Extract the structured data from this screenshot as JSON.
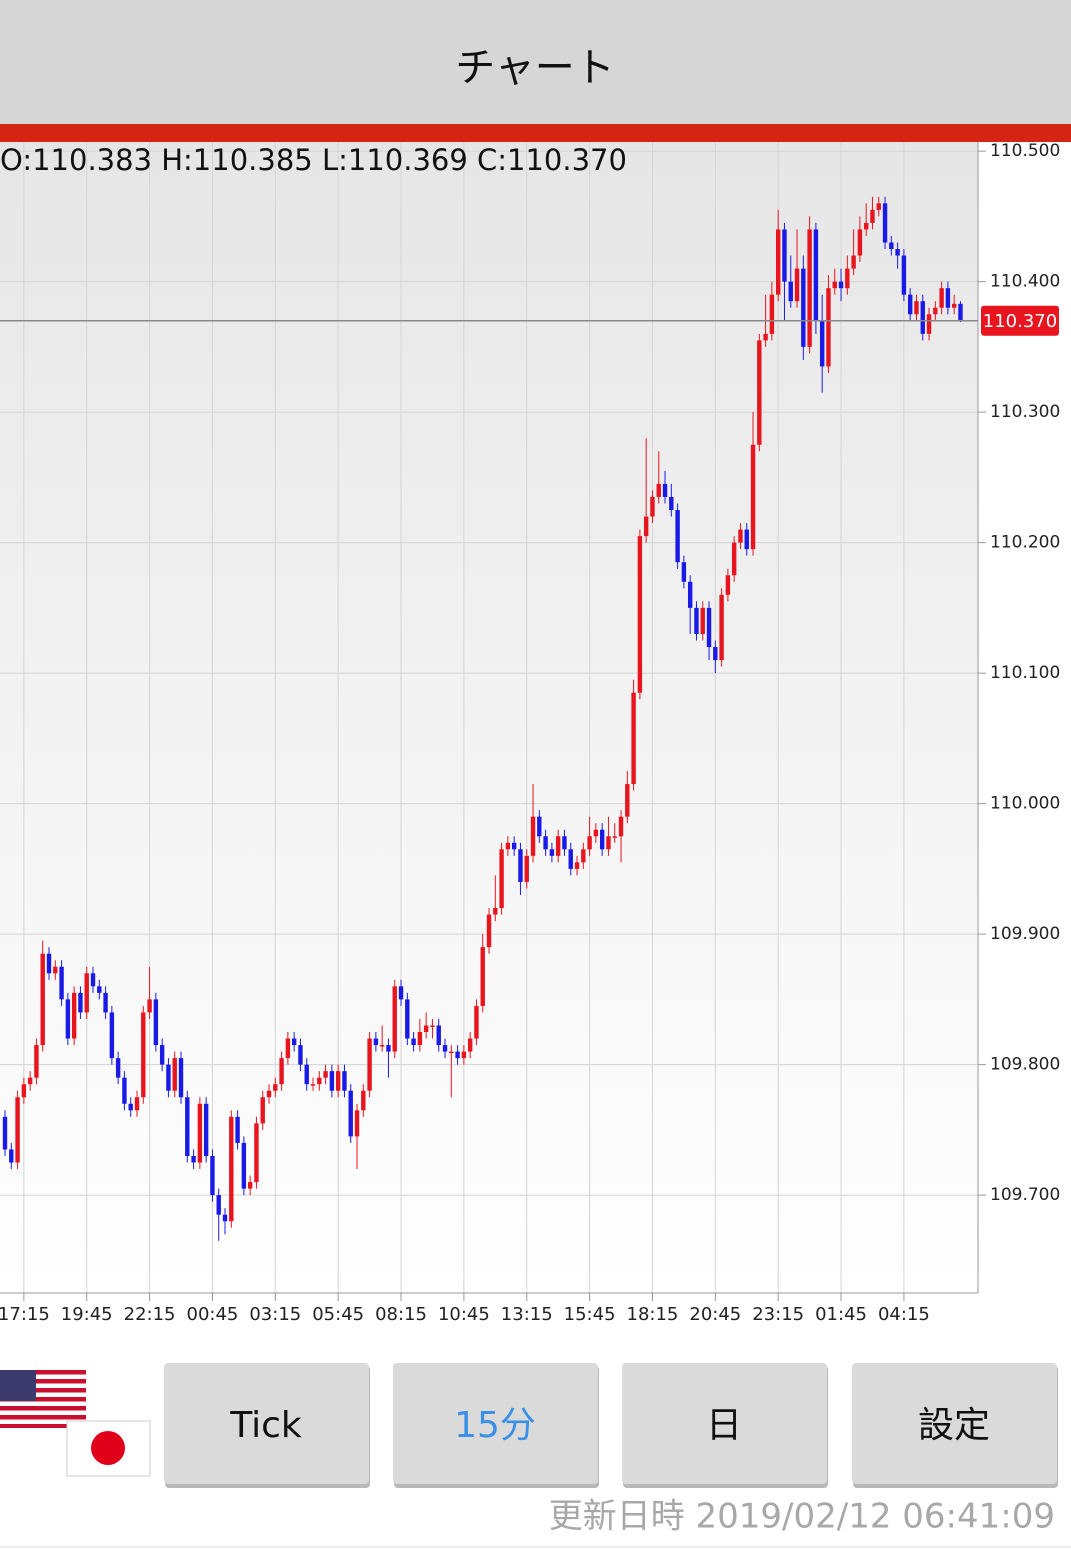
{
  "header": {
    "title": "チャート"
  },
  "chart_data": {
    "type": "candlestick",
    "ohlc_label": "O:110.383 H:110.385 L:110.369 C:110.370",
    "categories": [
      null,
      null,
      null,
      "17:15",
      null,
      null,
      null,
      null,
      null,
      null,
      null,
      null,
      null,
      "19:45",
      null,
      null,
      null,
      null,
      null,
      null,
      null,
      null,
      null,
      "22:15",
      null,
      null,
      null,
      null,
      null,
      null,
      null,
      null,
      null,
      "00:45",
      null,
      null,
      null,
      null,
      null,
      null,
      null,
      null,
      null,
      "03:15",
      null,
      null,
      null,
      null,
      null,
      null,
      null,
      null,
      null,
      "05:45",
      null,
      null,
      null,
      null,
      null,
      null,
      null,
      null,
      null,
      "08:15",
      null,
      null,
      null,
      null,
      null,
      null,
      null,
      null,
      null,
      "10:45",
      null,
      null,
      null,
      null,
      null,
      null,
      null,
      null,
      null,
      "13:15",
      null,
      null,
      null,
      null,
      null,
      null,
      null,
      null,
      null,
      "15:45",
      null,
      null,
      null,
      null,
      null,
      null,
      null,
      null,
      null,
      "18:15",
      null,
      null,
      null,
      null,
      null,
      null,
      null,
      null,
      null,
      "20:45",
      null,
      null,
      null,
      null,
      null,
      null,
      null,
      null,
      null,
      "23:15",
      null,
      null,
      null,
      null,
      null,
      null,
      null,
      null,
      null,
      "01:45",
      null,
      null,
      null,
      null,
      null,
      null,
      null,
      null,
      null,
      "04:15",
      null,
      null,
      null,
      null,
      null,
      null,
      null,
      null,
      null
    ],
    "open": [
      109.76,
      109.735,
      109.725,
      109.775,
      109.785,
      109.79,
      109.815,
      109.885,
      109.87,
      109.875,
      109.85,
      109.82,
      109.855,
      109.84,
      109.87,
      109.86,
      109.855,
      109.84,
      109.805,
      109.79,
      109.77,
      109.765,
      109.775,
      109.84,
      109.85,
      109.815,
      109.8,
      109.78,
      109.805,
      109.775,
      109.73,
      109.725,
      109.77,
      109.73,
      109.7,
      109.685,
      109.68,
      109.76,
      109.74,
      109.705,
      109.71,
      109.755,
      109.775,
      109.78,
      109.785,
      109.805,
      109.82,
      109.815,
      109.8,
      109.785,
      109.785,
      109.79,
      109.795,
      109.78,
      109.795,
      109.78,
      109.745,
      109.765,
      109.78,
      109.82,
      109.815,
      109.815,
      109.81,
      109.86,
      109.85,
      109.82,
      109.815,
      109.825,
      109.83,
      109.83,
      109.815,
      109.81,
      109.81,
      109.805,
      109.81,
      109.82,
      109.845,
      109.89,
      109.915,
      109.92,
      109.965,
      109.97,
      109.965,
      109.94,
      109.96,
      109.99,
      109.975,
      109.965,
      109.96,
      109.975,
      109.965,
      109.95,
      109.955,
      109.965,
      109.975,
      109.98,
      109.965,
      109.975,
      109.975,
      109.99,
      110.015,
      110.085,
      110.205,
      110.22,
      110.235,
      110.245,
      110.235,
      110.225,
      110.185,
      110.17,
      110.15,
      110.13,
      110.15,
      110.12,
      110.11,
      110.16,
      110.175,
      110.2,
      110.21,
      110.195,
      110.275,
      110.355,
      110.36,
      110.39,
      110.44,
      110.4,
      110.385,
      110.41,
      110.35,
      110.44,
      110.37,
      110.335,
      110.395,
      110.4,
      110.395,
      110.41,
      110.42,
      110.44,
      110.445,
      110.455,
      110.46,
      110.43,
      110.425,
      110.42,
      110.39,
      110.375,
      110.385,
      110.36,
      110.375,
      110.38,
      110.395,
      110.38,
      110.383
    ],
    "high": [
      109.765,
      109.74,
      109.78,
      109.79,
      109.795,
      109.82,
      109.895,
      109.89,
      109.88,
      109.88,
      109.855,
      109.86,
      109.86,
      109.875,
      109.875,
      109.865,
      109.86,
      109.845,
      109.81,
      109.795,
      109.775,
      109.78,
      109.845,
      109.875,
      109.855,
      109.82,
      109.805,
      109.81,
      109.81,
      109.78,
      109.735,
      109.775,
      109.775,
      109.735,
      109.705,
      109.69,
      109.765,
      109.765,
      109.745,
      109.715,
      109.76,
      109.78,
      109.785,
      109.79,
      109.81,
      109.825,
      109.825,
      109.82,
      109.805,
      109.79,
      109.795,
      109.8,
      109.8,
      109.8,
      109.8,
      109.785,
      109.77,
      109.785,
      109.825,
      109.825,
      109.83,
      109.82,
      109.865,
      109.865,
      109.855,
      109.825,
      109.835,
      109.84,
      109.835,
      109.835,
      109.82,
      109.815,
      109.815,
      109.815,
      109.825,
      109.85,
      109.9,
      109.92,
      109.945,
      109.97,
      109.975,
      109.975,
      109.97,
      109.965,
      110.015,
      109.995,
      109.98,
      109.97,
      109.98,
      109.98,
      109.97,
      109.96,
      109.97,
      109.99,
      109.985,
      109.985,
      109.99,
      109.985,
      109.995,
      110.025,
      110.095,
      110.21,
      110.28,
      110.24,
      110.27,
      110.255,
      110.245,
      110.23,
      110.19,
      110.175,
      110.155,
      110.155,
      110.155,
      110.125,
      110.165,
      110.18,
      110.205,
      110.215,
      110.215,
      110.3,
      110.36,
      110.39,
      110.4,
      110.455,
      110.445,
      110.42,
      110.44,
      110.42,
      110.45,
      110.445,
      110.39,
      110.405,
      110.41,
      110.41,
      110.42,
      110.44,
      110.45,
      110.46,
      110.465,
      110.465,
      110.465,
      110.435,
      110.43,
      110.425,
      110.395,
      110.39,
      110.39,
      110.38,
      110.385,
      110.4,
      110.4,
      110.39,
      110.385
    ],
    "low": [
      109.73,
      109.72,
      109.72,
      109.77,
      109.78,
      109.785,
      109.81,
      109.865,
      109.865,
      109.845,
      109.815,
      109.815,
      109.835,
      109.835,
      109.855,
      109.85,
      109.835,
      109.8,
      109.785,
      109.765,
      109.76,
      109.76,
      109.77,
      109.835,
      109.81,
      109.795,
      109.775,
      109.775,
      109.77,
      109.725,
      109.72,
      109.72,
      109.725,
      109.695,
      109.665,
      109.67,
      109.675,
      109.735,
      109.7,
      109.7,
      109.705,
      109.75,
      109.77,
      109.775,
      109.78,
      109.8,
      109.81,
      109.795,
      109.78,
      109.78,
      109.78,
      109.785,
      109.775,
      109.775,
      109.775,
      109.74,
      109.72,
      109.76,
      109.775,
      109.81,
      109.81,
      109.79,
      109.805,
      109.845,
      109.815,
      109.81,
      109.81,
      109.82,
      109.82,
      109.81,
      109.805,
      109.775,
      109.8,
      109.8,
      109.805,
      109.815,
      109.84,
      109.885,
      109.91,
      109.915,
      109.96,
      109.96,
      109.93,
      109.935,
      109.955,
      109.97,
      109.96,
      109.955,
      109.955,
      109.96,
      109.945,
      109.945,
      109.95,
      109.96,
      109.97,
      109.96,
      109.96,
      109.97,
      109.955,
      109.985,
      110.01,
      110.08,
      110.2,
      110.215,
      110.23,
      110.23,
      110.22,
      110.18,
      110.165,
      110.13,
      110.125,
      110.125,
      110.11,
      110.1,
      110.105,
      110.155,
      110.17,
      110.195,
      110.19,
      110.19,
      110.27,
      110.35,
      110.355,
      110.385,
      110.37,
      110.38,
      110.38,
      110.34,
      110.345,
      110.36,
      110.315,
      110.33,
      110.39,
      110.385,
      110.39,
      110.405,
      110.415,
      110.435,
      110.44,
      110.45,
      110.425,
      110.42,
      110.41,
      110.385,
      110.37,
      110.37,
      110.355,
      110.355,
      110.37,
      110.375,
      110.375,
      110.375,
      110.369
    ],
    "close": [
      109.735,
      109.725,
      109.775,
      109.785,
      109.79,
      109.815,
      109.885,
      109.87,
      109.875,
      109.85,
      109.82,
      109.855,
      109.84,
      109.87,
      109.86,
      109.855,
      109.84,
      109.805,
      109.79,
      109.77,
      109.765,
      109.775,
      109.84,
      109.85,
      109.815,
      109.8,
      109.78,
      109.805,
      109.775,
      109.73,
      109.725,
      109.77,
      109.73,
      109.7,
      109.685,
      109.68,
      109.76,
      109.74,
      109.705,
      109.71,
      109.755,
      109.775,
      109.78,
      109.785,
      109.805,
      109.82,
      109.815,
      109.8,
      109.785,
      109.785,
      109.79,
      109.795,
      109.78,
      109.795,
      109.78,
      109.745,
      109.765,
      109.78,
      109.82,
      109.815,
      109.815,
      109.81,
      109.86,
      109.85,
      109.82,
      109.815,
      109.825,
      109.83,
      109.83,
      109.815,
      109.81,
      109.81,
      109.805,
      109.81,
      109.82,
      109.845,
      109.89,
      109.915,
      109.92,
      109.965,
      109.97,
      109.965,
      109.94,
      109.96,
      109.99,
      109.975,
      109.965,
      109.96,
      109.975,
      109.965,
      109.95,
      109.955,
      109.965,
      109.975,
      109.98,
      109.965,
      109.975,
      109.975,
      109.99,
      110.015,
      110.085,
      110.205,
      110.22,
      110.235,
      110.245,
      110.235,
      110.225,
      110.185,
      110.17,
      110.15,
      110.13,
      110.15,
      110.12,
      110.11,
      110.16,
      110.175,
      110.2,
      110.21,
      110.195,
      110.275,
      110.355,
      110.36,
      110.39,
      110.44,
      110.4,
      110.385,
      110.41,
      110.35,
      110.44,
      110.37,
      110.335,
      110.395,
      110.4,
      110.395,
      110.41,
      110.42,
      110.44,
      110.445,
      110.455,
      110.46,
      110.43,
      110.425,
      110.42,
      110.39,
      110.375,
      110.385,
      110.36,
      110.375,
      110.38,
      110.395,
      110.38,
      110.383,
      110.37
    ],
    "up_color": "#e8141e",
    "down_color": "#1a1ae6",
    "ylim": [
      109.625,
      110.507
    ],
    "yticks": [
      {
        "value": 109.7,
        "label": "109.700"
      },
      {
        "value": 109.8,
        "label": "109.800"
      },
      {
        "value": 109.9,
        "label": "109.900"
      },
      {
        "value": 110.0,
        "label": "110.000"
      },
      {
        "value": 110.1,
        "label": "110.100"
      },
      {
        "value": 110.2,
        "label": "110.200"
      },
      {
        "value": 110.3,
        "label": "110.300"
      },
      {
        "value": 110.4,
        "label": "110.400"
      },
      {
        "value": 110.5,
        "label": "110.500"
      }
    ],
    "last_price": {
      "value": 110.37,
      "label": "110.370"
    },
    "grid": true
  },
  "buttons": [
    "Tick",
    "15分",
    "日",
    "設定"
  ],
  "footer": {
    "updated": "更新日時 2019/02/12 06:41:09"
  }
}
